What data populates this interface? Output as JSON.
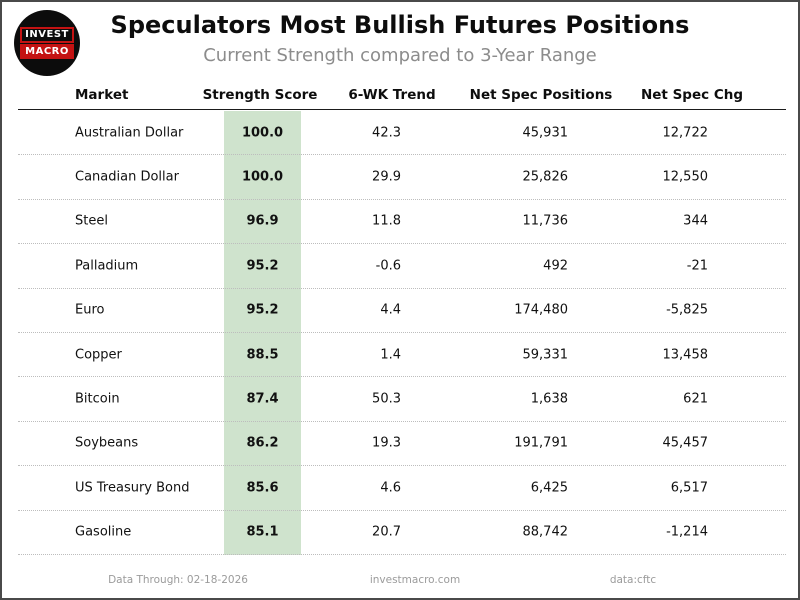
{
  "chart_data": {
    "type": "table",
    "title": "Speculators Most Bullish Futures Positions",
    "subtitle": "Current Strength compared to 3-Year Range",
    "columns": [
      "Market",
      "Strength Score",
      "6-WK Trend",
      "Net Spec Positions",
      "Net Spec Chg"
    ],
    "rows": [
      [
        "Australian Dollar",
        100.0,
        42.3,
        45931,
        12722
      ],
      [
        "Canadian Dollar",
        100.0,
        29.9,
        25826,
        12550
      ],
      [
        "Steel",
        96.9,
        11.8,
        11736,
        344
      ],
      [
        "Palladium",
        95.2,
        -0.6,
        492,
        -21
      ],
      [
        "Euro",
        95.2,
        4.4,
        174480,
        -5825
      ],
      [
        "Copper",
        88.5,
        1.4,
        59331,
        13458
      ],
      [
        "Bitcoin",
        87.4,
        50.3,
        1638,
        621
      ],
      [
        "Soybeans",
        86.2,
        19.3,
        191791,
        45457
      ],
      [
        "US Treasury Bond",
        85.6,
        4.6,
        6425,
        6517
      ],
      [
        "Gasoline",
        85.1,
        20.7,
        88742,
        -1214
      ]
    ],
    "layout_hints": {
      "grid": "dotted-row-separators",
      "highlight_column": "Strength Score"
    }
  },
  "logo": {
    "line1": "INVEST",
    "line2": "MACRO"
  },
  "table": {
    "rows": [
      {
        "market": "Australian Dollar",
        "score": "100.0",
        "trend": "42.3",
        "positions": "45,931",
        "chg": "12,722"
      },
      {
        "market": "Canadian Dollar",
        "score": "100.0",
        "trend": "29.9",
        "positions": "25,826",
        "chg": "12,550"
      },
      {
        "market": "Steel",
        "score": "96.9",
        "trend": "11.8",
        "positions": "11,736",
        "chg": "344"
      },
      {
        "market": "Palladium",
        "score": "95.2",
        "trend": "-0.6",
        "positions": "492",
        "chg": "-21"
      },
      {
        "market": "Euro",
        "score": "95.2",
        "trend": "4.4",
        "positions": "174,480",
        "chg": "-5,825"
      },
      {
        "market": "Copper",
        "score": "88.5",
        "trend": "1.4",
        "positions": "59,331",
        "chg": "13,458"
      },
      {
        "market": "Bitcoin",
        "score": "87.4",
        "trend": "50.3",
        "positions": "1,638",
        "chg": "621"
      },
      {
        "market": "Soybeans",
        "score": "86.2",
        "trend": "19.3",
        "positions": "191,791",
        "chg": "45,457"
      },
      {
        "market": "US Treasury Bond",
        "score": "85.6",
        "trend": "4.6",
        "positions": "6,425",
        "chg": "6,517"
      },
      {
        "market": "Gasoline",
        "score": "85.1",
        "trend": "20.7",
        "positions": "88,742",
        "chg": "-1,214"
      }
    ]
  },
  "footer": {
    "data_through": "Data Through: 02-18-2026",
    "site": "investmacro.com",
    "source": "data:cftc"
  },
  "colors": {
    "score_highlight": "#cfe3cd",
    "subtitle_gray": "#8c8c8c",
    "footer_gray": "#9b9b9b",
    "logo_red": "#c41212",
    "frame_border": "#4a4a4a"
  }
}
